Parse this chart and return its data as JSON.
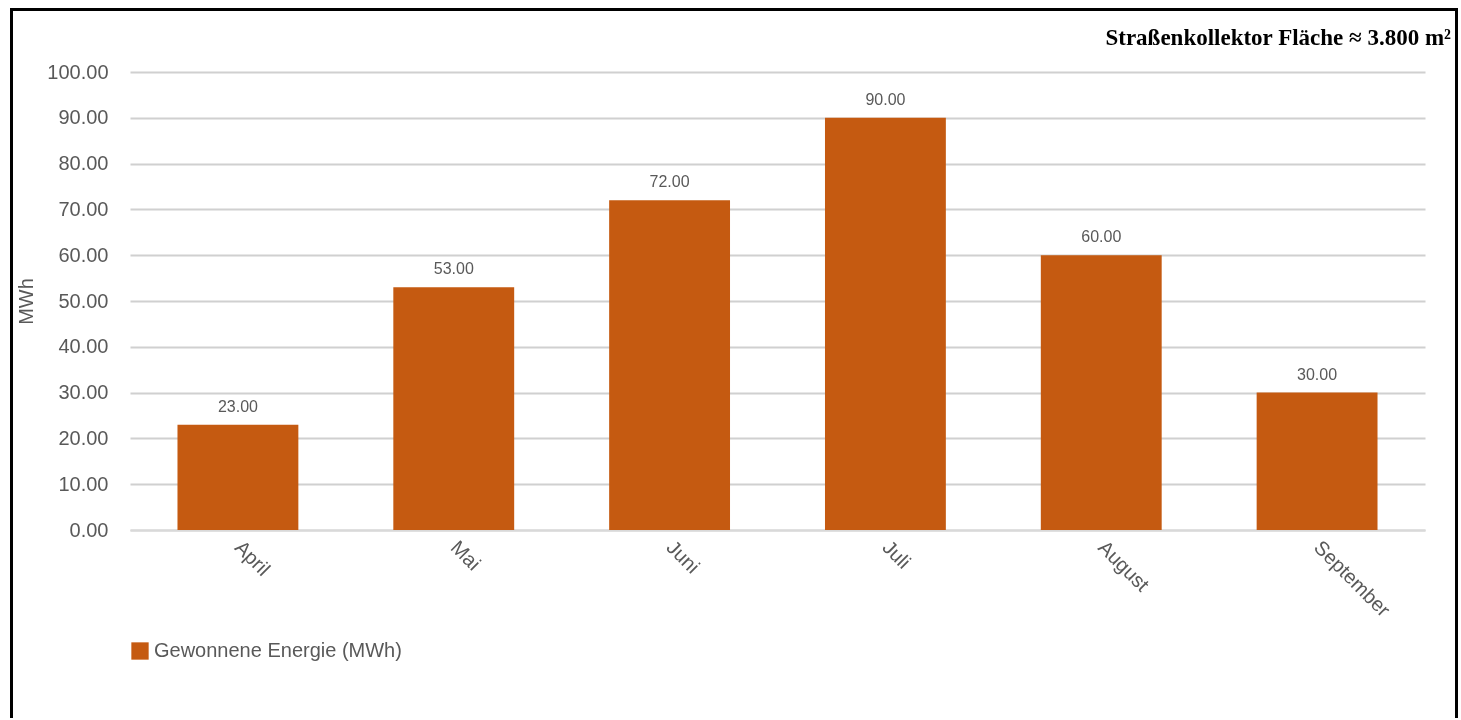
{
  "chart_data": {
    "type": "bar",
    "ylabel": "MWh",
    "annotations": [
      "Straßenkollektor Fläche ≈ 3.800 m²"
    ],
    "categories": [
      "April",
      "Mai",
      "Juni",
      "Juli",
      "August",
      "September"
    ],
    "series": [
      {
        "name": "Gewonnene Energie (MWh)",
        "color": "#c55a11",
        "values": [
          23,
          53,
          72,
          90,
          60,
          30
        ],
        "value_labels": [
          "23.00",
          "53.00",
          "72.00",
          "90.00",
          "60.00",
          "30.00"
        ]
      }
    ],
    "ylim": [
      0,
      100
    ],
    "yticks": [
      {
        "value": 0,
        "label": "0.00"
      },
      {
        "value": 10,
        "label": "10.00"
      },
      {
        "value": 20,
        "label": "20.00"
      },
      {
        "value": 30,
        "label": "30.00"
      },
      {
        "value": 40,
        "label": "40.00"
      },
      {
        "value": 50,
        "label": "50.00"
      },
      {
        "value": 60,
        "label": "60.00"
      },
      {
        "value": 70,
        "label": "70.00"
      },
      {
        "value": 80,
        "label": "80.00"
      },
      {
        "value": 90,
        "label": "90.00"
      },
      {
        "value": 100,
        "label": "100.00"
      }
    ],
    "grid": "y",
    "legend": "bottom"
  }
}
